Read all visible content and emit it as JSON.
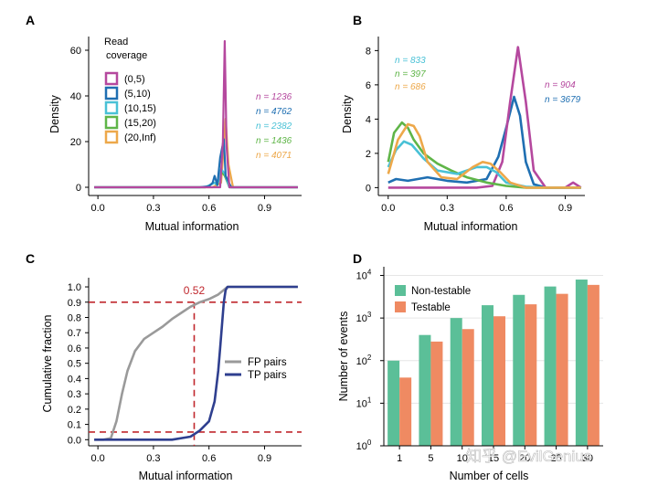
{
  "colors": {
    "c0": "#b5489e",
    "c5": "#1f6fb2",
    "c10": "#49c1d6",
    "c15": "#5fb548",
    "c20": "#eda84a",
    "fp": "#9a9a9a",
    "tp": "#2f3f8f",
    "ref": "#c0272d",
    "nontestable": "#5bbf98",
    "testable": "#ef8a62",
    "grid": "#e6e6e6"
  },
  "watermark": "知乎 @EvilGenius",
  "chart_data": [
    {
      "panel": "A",
      "type": "line",
      "xlabel": "Mutual information",
      "ylabel": "Density",
      "xlim": [
        -0.05,
        1.1
      ],
      "ylim": [
        0,
        66
      ],
      "xticks": [
        "0.0",
        "0.3",
        "0.6",
        "0.9"
      ],
      "yticks": [
        "0",
        "20",
        "40",
        "60"
      ],
      "legend_title": "Read\ncoverage",
      "legend_title_lines": [
        "Read",
        "coverage"
      ],
      "series": [
        {
          "name": "(0,5)",
          "n_label": "n = 1236",
          "color_key": "c0",
          "x": [
            -0.02,
            0.6,
            0.66,
            0.675,
            0.685,
            0.695,
            0.71,
            1.08
          ],
          "y": [
            0,
            0,
            0,
            20,
            64,
            18,
            0,
            0
          ]
        },
        {
          "name": "(5,10)",
          "n_label": "n = 4762",
          "color_key": "c5",
          "x": [
            -0.02,
            0.55,
            0.6,
            0.62,
            0.63,
            0.645,
            0.66,
            0.68,
            0.69,
            0.72,
            1.08
          ],
          "y": [
            0,
            0,
            0.5,
            2,
            5,
            1,
            13,
            21,
            5,
            0,
            0
          ]
        },
        {
          "name": "(10,15)",
          "n_label": "n = 2382",
          "color_key": "c10",
          "x": [
            -0.02,
            0.58,
            0.63,
            0.645,
            0.665,
            0.685,
            0.71,
            1.08
          ],
          "y": [
            0,
            0,
            2,
            1,
            8,
            6,
            0,
            0
          ]
        },
        {
          "name": "(15,20)",
          "n_label": "n = 1436",
          "color_key": "c15",
          "x": [
            -0.02,
            0.58,
            0.63,
            0.645,
            0.665,
            0.685,
            0.71,
            1.08
          ],
          "y": [
            0,
            0,
            2,
            1,
            7,
            5,
            0,
            0
          ]
        },
        {
          "name": "(20,Inf)",
          "n_label": "n = 4071",
          "color_key": "c20",
          "x": [
            -0.02,
            0.62,
            0.665,
            0.68,
            0.69,
            0.705,
            0.73,
            1.08
          ],
          "y": [
            0,
            0,
            2,
            18,
            30,
            10,
            0,
            0
          ]
        }
      ]
    },
    {
      "panel": "B",
      "type": "line",
      "xlabel": "Mutual information",
      "ylabel": "Density",
      "xlim": [
        -0.05,
        1.0
      ],
      "ylim": [
        -0.3,
        8.5
      ],
      "xticks": [
        "0.0",
        "0.3",
        "0.6",
        "0.9"
      ],
      "yticks": [
        "0",
        "2",
        "4",
        "6",
        "8"
      ],
      "series": [
        {
          "n_label": "n = 904",
          "color_key": "c0",
          "x": [
            0.0,
            0.3,
            0.45,
            0.53,
            0.58,
            0.62,
            0.66,
            0.7,
            0.74,
            0.8,
            0.9,
            0.94,
            0.98
          ],
          "y": [
            0,
            0,
            0,
            0.1,
            1.5,
            5,
            8.2,
            5,
            1,
            0,
            0,
            0.3,
            0
          ]
        },
        {
          "n_label": "n = 3679",
          "color_key": "c5",
          "x": [
            0.0,
            0.04,
            0.1,
            0.2,
            0.3,
            0.4,
            0.5,
            0.56,
            0.6,
            0.64,
            0.67,
            0.7,
            0.74,
            0.8,
            0.9,
            0.98
          ],
          "y": [
            0.3,
            0.5,
            0.4,
            0.6,
            0.4,
            0.3,
            0.5,
            1.8,
            3.5,
            5.3,
            4.2,
            1.5,
            0.2,
            0,
            0,
            0
          ]
        },
        {
          "n_label": "n = 833",
          "color_key": "c10",
          "x": [
            0.0,
            0.04,
            0.08,
            0.12,
            0.18,
            0.25,
            0.35,
            0.45,
            0.5,
            0.55,
            0.6,
            0.7,
            0.8,
            0.98
          ],
          "y": [
            1.2,
            2.2,
            2.7,
            2.5,
            1.7,
            1.0,
            0.8,
            1.2,
            1.2,
            0.9,
            0.3,
            0.05,
            0,
            0
          ]
        },
        {
          "n_label": "n = 397",
          "color_key": "c15",
          "x": [
            0.0,
            0.03,
            0.07,
            0.1,
            0.13,
            0.18,
            0.25,
            0.32,
            0.4,
            0.5,
            0.6,
            0.7,
            0.8,
            0.98
          ],
          "y": [
            1.5,
            3.2,
            3.8,
            3.5,
            2.8,
            2.0,
            1.4,
            1.0,
            0.6,
            0.3,
            0.1,
            0,
            0,
            0
          ]
        },
        {
          "n_label": "n = 686",
          "color_key": "c20",
          "x": [
            0.0,
            0.05,
            0.1,
            0.13,
            0.16,
            0.2,
            0.27,
            0.35,
            0.43,
            0.48,
            0.52,
            0.57,
            0.62,
            0.7,
            0.8,
            0.98
          ],
          "y": [
            0.8,
            2.8,
            3.7,
            3.6,
            3.0,
            1.5,
            0.6,
            0.5,
            1.2,
            1.5,
            1.4,
            0.9,
            0.3,
            0,
            0,
            0
          ]
        }
      ]
    },
    {
      "panel": "C",
      "type": "line",
      "xlabel": "Mutual information",
      "ylabel": "Cumulative fraction",
      "xlim": [
        -0.05,
        1.1
      ],
      "ylim": [
        -0.04,
        1.06
      ],
      "xticks": [
        "0.0",
        "0.3",
        "0.6",
        "0.9"
      ],
      "yticks": [
        "0.0",
        "0.1",
        "0.2",
        "0.3",
        "0.4",
        "0.5",
        "0.6",
        "0.7",
        "0.8",
        "0.9",
        "1.0"
      ],
      "hlines": [
        0.9,
        0.05
      ],
      "vline": 0.52,
      "vline_label": "0.52",
      "series": [
        {
          "name": "FP pairs",
          "color_key": "fp",
          "x": [
            -0.02,
            0.03,
            0.07,
            0.1,
            0.13,
            0.16,
            0.2,
            0.25,
            0.3,
            0.35,
            0.4,
            0.45,
            0.5,
            0.55,
            0.6,
            0.65,
            0.7,
            1.08
          ],
          "y": [
            0,
            0,
            0.01,
            0.12,
            0.3,
            0.45,
            0.58,
            0.66,
            0.7,
            0.74,
            0.79,
            0.83,
            0.87,
            0.9,
            0.92,
            0.95,
            1.0,
            1.0
          ]
        },
        {
          "name": "TP pairs",
          "color_key": "tp",
          "x": [
            -0.02,
            0.4,
            0.5,
            0.55,
            0.6,
            0.63,
            0.65,
            0.66,
            0.67,
            0.68,
            0.69,
            0.7,
            1.08
          ],
          "y": [
            0,
            0,
            0.02,
            0.06,
            0.12,
            0.25,
            0.45,
            0.6,
            0.75,
            0.9,
            0.98,
            1.0,
            1.0
          ]
        }
      ]
    },
    {
      "panel": "D",
      "type": "bar",
      "xlabel": "Number of cells",
      "ylabel": "Number of events",
      "yscale": "log",
      "ylim": [
        1,
        16000
      ],
      "categories": [
        "1",
        "5",
        "10",
        "15",
        "20",
        "25",
        "30"
      ],
      "ytick_bases": [
        "10",
        "10",
        "10",
        "10",
        "10"
      ],
      "ytick_exps": [
        "0",
        "1",
        "2",
        "3",
        "4"
      ],
      "series": [
        {
          "name": "Non-testable",
          "color_key": "nontestable",
          "values": [
            100,
            400,
            1000,
            2000,
            3500,
            5500,
            8000
          ]
        },
        {
          "name": "Testable",
          "color_key": "testable",
          "values": [
            40,
            280,
            550,
            1100,
            2100,
            3700,
            6000
          ]
        }
      ]
    }
  ]
}
